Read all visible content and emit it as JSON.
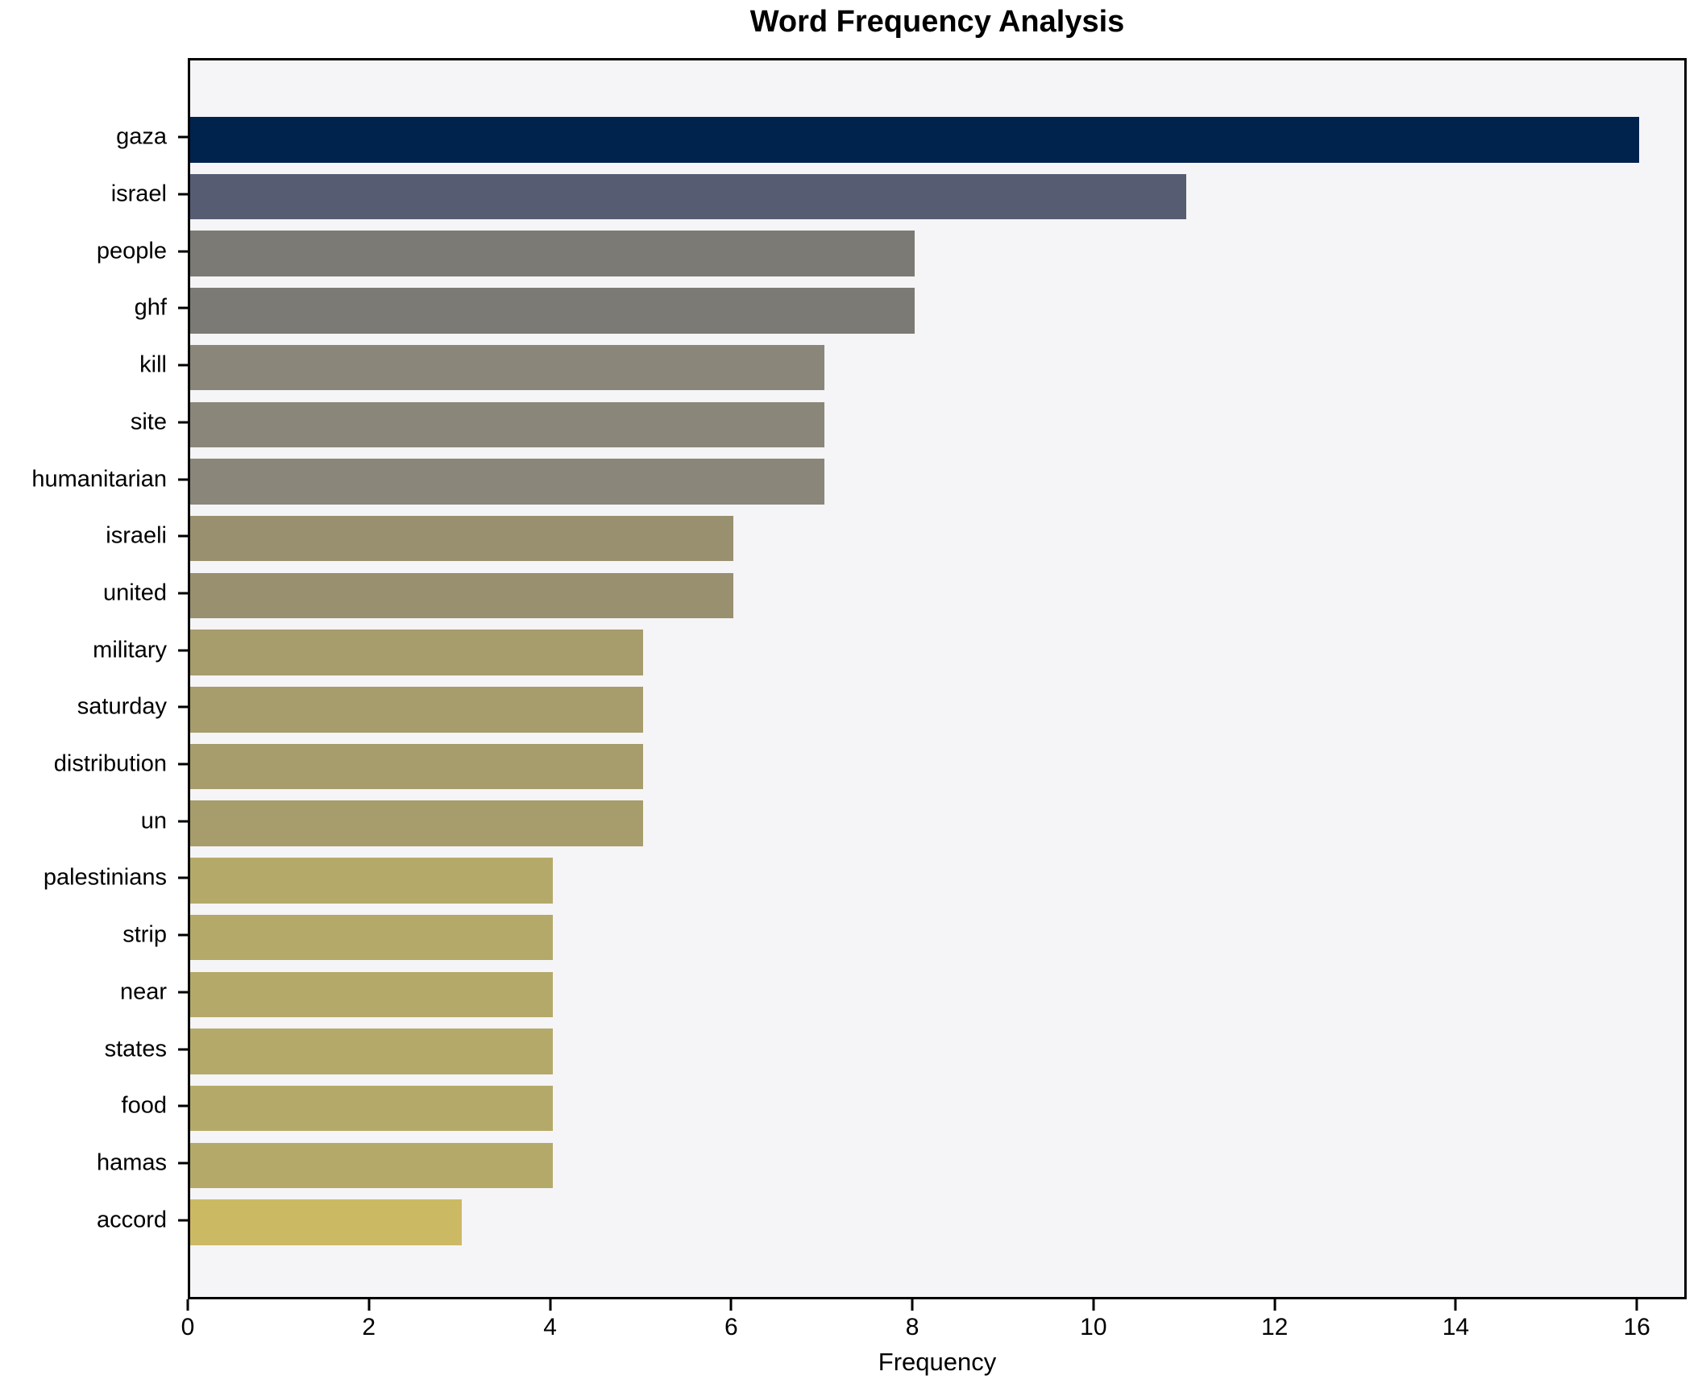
{
  "chart_data": {
    "type": "bar",
    "orientation": "horizontal",
    "title": "Word Frequency Analysis",
    "xlabel": "Frequency",
    "ylabel": "",
    "categories": [
      "gaza",
      "israel",
      "people",
      "ghf",
      "kill",
      "site",
      "humanitarian",
      "israeli",
      "united",
      "military",
      "saturday",
      "distribution",
      "un",
      "palestinians",
      "strip",
      "near",
      "states",
      "food",
      "hamas",
      "accord"
    ],
    "values": [
      16,
      11,
      8,
      8,
      7,
      7,
      7,
      6,
      6,
      5,
      5,
      5,
      5,
      4,
      4,
      4,
      4,
      4,
      4,
      3
    ],
    "colors": [
      "#00234e",
      "#565d73",
      "#7b7a74",
      "#7b7a74",
      "#8a877a",
      "#8a877a",
      "#8a877a",
      "#999070",
      "#999070",
      "#a79c6c",
      "#a79c6c",
      "#a79c6c",
      "#a79c6c",
      "#b5a96a",
      "#b5a96a",
      "#b5a96a",
      "#b5a96a",
      "#b5a96a",
      "#b5a96a",
      "#ccb964"
    ],
    "xlim": [
      0,
      16.55
    ],
    "xticks": [
      "0",
      "2",
      "4",
      "6",
      "8",
      "10",
      "12",
      "14",
      "16"
    ],
    "grid": false,
    "legend": false,
    "plot_background": "#f5f4f6",
    "spine_color": "#000000",
    "text_color": "#000000"
  }
}
